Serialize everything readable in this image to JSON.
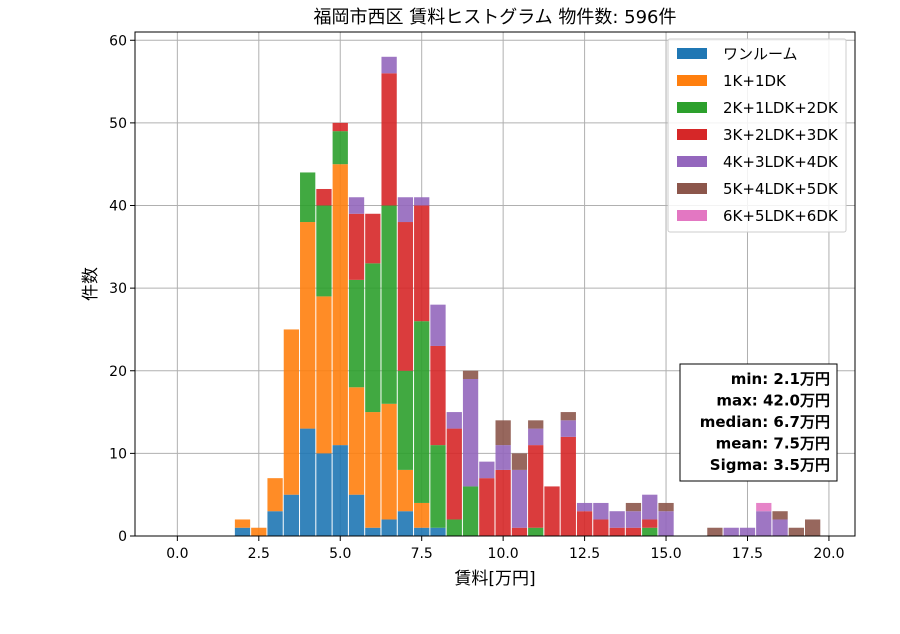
{
  "chart_data": {
    "type": "bar",
    "stacked": true,
    "title": "福岡市西区 賃料ヒストグラム  物件数: 596件",
    "xlabel": "賃料[万円]",
    "ylabel": "件数",
    "xlim": [
      -1.3,
      20.8
    ],
    "ylim": [
      0,
      61
    ],
    "x_ticks": [
      0.0,
      2.5,
      5.0,
      7.5,
      10.0,
      12.5,
      15.0,
      17.5,
      20.0
    ],
    "x_tick_labels": [
      "0.0",
      "2.5",
      "5.0",
      "7.5",
      "10.0",
      "12.5",
      "15.0",
      "17.5",
      "20.0"
    ],
    "y_ticks": [
      0,
      10,
      20,
      30,
      40,
      50,
      60
    ],
    "y_tick_labels": [
      "0",
      "10",
      "20",
      "30",
      "40",
      "50",
      "60"
    ],
    "grid": true,
    "legend_position": "top-right",
    "bin_width": 0.5,
    "x": [
      2.0,
      2.5,
      3.0,
      3.5,
      4.0,
      4.5,
      5.0,
      5.5,
      6.0,
      6.5,
      7.0,
      7.5,
      8.0,
      8.5,
      9.0,
      9.5,
      10.0,
      10.5,
      11.0,
      11.5,
      12.0,
      12.5,
      13.0,
      13.5,
      14.0,
      14.5,
      15.0,
      16.5,
      17.0,
      17.5,
      18.0,
      18.5,
      19.0,
      19.5
    ],
    "series": [
      {
        "name": "ワンルーム",
        "color": "#1f77b4",
        "values": [
          1,
          0,
          3,
          5,
          13,
          10,
          11,
          5,
          1,
          2,
          3,
          1,
          1,
          0,
          0,
          0,
          0,
          0,
          0,
          0,
          0,
          0,
          0,
          0,
          0,
          0,
          0,
          0,
          0,
          0,
          0,
          0,
          0,
          0
        ]
      },
      {
        "name": "1K+1DK",
        "color": "#ff7f0e",
        "values": [
          1,
          1,
          4,
          20,
          25,
          19,
          34,
          13,
          14,
          14,
          5,
          3,
          0,
          0,
          0,
          0,
          0,
          0,
          0,
          0,
          0,
          0,
          0,
          0,
          0,
          0,
          0,
          0,
          0,
          0,
          0,
          0,
          0,
          0
        ]
      },
      {
        "name": "2K+1LDK+2DK",
        "color": "#2ca02c",
        "values": [
          0,
          0,
          0,
          0,
          6,
          11,
          4,
          13,
          18,
          24,
          12,
          22,
          10,
          2,
          6,
          0,
          0,
          0,
          1,
          0,
          0,
          0,
          0,
          0,
          0,
          1,
          0,
          0,
          0,
          0,
          0,
          0,
          0,
          0
        ]
      },
      {
        "name": "3K+2LDK+3DK",
        "color": "#d62728",
        "values": [
          0,
          0,
          0,
          0,
          0,
          2,
          1,
          8,
          6,
          16,
          18,
          14,
          12,
          11,
          0,
          7,
          8,
          1,
          10,
          6,
          12,
          3,
          2,
          1,
          1,
          1,
          0,
          0,
          0,
          0,
          0,
          0,
          0,
          0
        ]
      },
      {
        "name": "4K+3LDK+4DK",
        "color": "#9467bd",
        "values": [
          0,
          0,
          0,
          0,
          0,
          0,
          0,
          2,
          0,
          2,
          3,
          1,
          5,
          2,
          13,
          2,
          3,
          7,
          2,
          0,
          2,
          1,
          2,
          2,
          2,
          3,
          3,
          0,
          1,
          1,
          3,
          2,
          0,
          0
        ]
      },
      {
        "name": "5K+4LDK+5DK",
        "color": "#8c564b",
        "values": [
          0,
          0,
          0,
          0,
          0,
          0,
          0,
          0,
          0,
          0,
          0,
          0,
          0,
          0,
          1,
          0,
          3,
          2,
          1,
          0,
          1,
          0,
          0,
          0,
          1,
          0,
          1,
          1,
          0,
          0,
          0,
          1,
          1,
          2
        ]
      },
      {
        "name": "6K+5LDK+6DK",
        "color": "#e377c2",
        "values": [
          0,
          0,
          0,
          0,
          0,
          0,
          0,
          0,
          0,
          0,
          0,
          0,
          0,
          0,
          0,
          0,
          0,
          0,
          0,
          0,
          0,
          0,
          0,
          0,
          0,
          0,
          0,
          0,
          0,
          0,
          1,
          0,
          0,
          0
        ]
      }
    ],
    "annotations": {
      "stats": [
        "min: 2.1万円",
        "max: 42.0万円",
        "median: 6.7万円",
        "mean: 7.5万円",
        "Sigma: 3.5万円"
      ]
    }
  }
}
